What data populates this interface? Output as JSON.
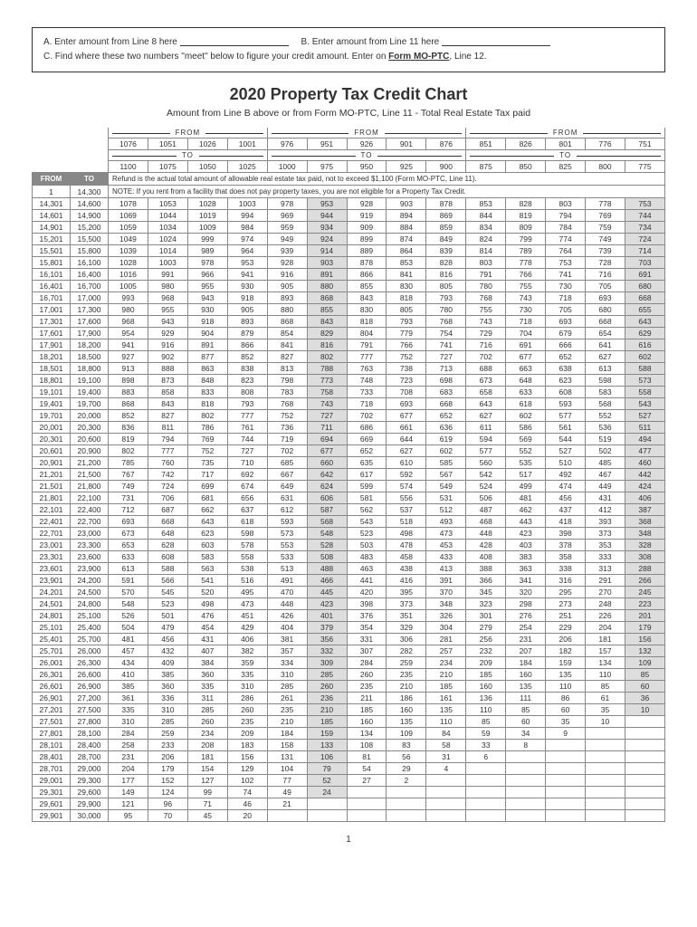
{
  "header": {
    "lineA_part1": "A. Enter amount from Line 8 here",
    "lineA_part2": "B. Enter amount from Line 11 here",
    "lineC_part1": "C. Find where these two numbers \"meet\" below to figure your credit amount. Enter on ",
    "lineC_bold": "Form MO-PTC",
    "lineC_part2": ", Line 12."
  },
  "title": "2020 Property Tax Credit Chart",
  "subtitle": "Amount from Line B above or from Form MO-PTC, Line 11 - Total Real Estate Tax paid",
  "group_label_from": "FROM",
  "group_label_to": "TO",
  "col_from_values": [
    1076,
    1051,
    1026,
    1001,
    976,
    951,
    926,
    901,
    876,
    851,
    826,
    801,
    776,
    751
  ],
  "col_to_values": [
    1100,
    1075,
    1050,
    1025,
    1000,
    975,
    950,
    925,
    900,
    875,
    850,
    825,
    800,
    775
  ],
  "income_header_from": "FROM",
  "income_header_to": "TO",
  "first_row_from": "1",
  "first_row_to": "14,300",
  "note1": "Refund is the actual total amount of allowable real estate tax paid, not to exceed $1,100 (Form MO-PTC, Line 11).",
  "note2": "NOTE: If you rent from a facility that does not pay property taxes, you are not eligible for a Property Tax Credit.",
  "rows": [
    {
      "from": "14,301",
      "to": "14,600",
      "v": [
        1078,
        1053,
        1028,
        1003,
        978,
        953,
        928,
        903,
        878,
        853,
        828,
        803,
        778,
        753
      ]
    },
    {
      "from": "14,601",
      "to": "14,900",
      "v": [
        1069,
        1044,
        1019,
        994,
        969,
        944,
        919,
        894,
        869,
        844,
        819,
        794,
        769,
        744
      ]
    },
    {
      "from": "14,901",
      "to": "15,200",
      "v": [
        1059,
        1034,
        1009,
        984,
        959,
        934,
        909,
        884,
        859,
        834,
        809,
        784,
        759,
        734
      ]
    },
    {
      "from": "15,201",
      "to": "15,500",
      "v": [
        1049,
        1024,
        999,
        974,
        949,
        924,
        899,
        874,
        849,
        824,
        799,
        774,
        749,
        724
      ]
    },
    {
      "from": "15,501",
      "to": "15,800",
      "v": [
        1039,
        1014,
        989,
        964,
        939,
        914,
        889,
        864,
        839,
        814,
        789,
        764,
        739,
        714
      ]
    },
    {
      "from": "15,801",
      "to": "16,100",
      "v": [
        1028,
        1003,
        978,
        953,
        928,
        903,
        878,
        853,
        828,
        803,
        778,
        753,
        728,
        703
      ]
    },
    {
      "from": "16,101",
      "to": "16,400",
      "v": [
        1016,
        991,
        966,
        941,
        916,
        891,
        866,
        841,
        816,
        791,
        766,
        741,
        716,
        691
      ]
    },
    {
      "from": "16,401",
      "to": "16,700",
      "v": [
        1005,
        980,
        955,
        930,
        905,
        880,
        855,
        830,
        805,
        780,
        755,
        730,
        705,
        680
      ]
    },
    {
      "from": "16,701",
      "to": "17,000",
      "v": [
        993,
        968,
        943,
        918,
        893,
        868,
        843,
        818,
        793,
        768,
        743,
        718,
        693,
        668
      ]
    },
    {
      "from": "17,001",
      "to": "17,300",
      "v": [
        980,
        955,
        930,
        905,
        880,
        855,
        830,
        805,
        780,
        755,
        730,
        705,
        680,
        655
      ]
    },
    {
      "from": "17,301",
      "to": "17,600",
      "v": [
        968,
        943,
        918,
        893,
        868,
        843,
        818,
        793,
        768,
        743,
        718,
        693,
        668,
        643
      ]
    },
    {
      "from": "17,601",
      "to": "17,900",
      "v": [
        954,
        929,
        904,
        879,
        854,
        829,
        804,
        779,
        754,
        729,
        704,
        679,
        654,
        629
      ]
    },
    {
      "from": "17,901",
      "to": "18,200",
      "v": [
        941,
        916,
        891,
        866,
        841,
        816,
        791,
        766,
        741,
        716,
        691,
        666,
        641,
        616
      ]
    },
    {
      "from": "18,201",
      "to": "18,500",
      "v": [
        927,
        902,
        877,
        852,
        827,
        802,
        777,
        752,
        727,
        702,
        677,
        652,
        627,
        602
      ]
    },
    {
      "from": "18,501",
      "to": "18,800",
      "v": [
        913,
        888,
        863,
        838,
        813,
        788,
        763,
        738,
        713,
        688,
        663,
        638,
        613,
        588
      ]
    },
    {
      "from": "18,801",
      "to": "19,100",
      "v": [
        898,
        873,
        848,
        823,
        798,
        773,
        748,
        723,
        698,
        673,
        648,
        623,
        598,
        573
      ]
    },
    {
      "from": "19,101",
      "to": "19,400",
      "v": [
        883,
        858,
        833,
        808,
        783,
        758,
        733,
        708,
        683,
        658,
        633,
        608,
        583,
        558
      ]
    },
    {
      "from": "19,401",
      "to": "19,700",
      "v": [
        868,
        843,
        818,
        793,
        768,
        743,
        718,
        693,
        668,
        643,
        618,
        593,
        568,
        543
      ]
    },
    {
      "from": "19,701",
      "to": "20,000",
      "v": [
        852,
        827,
        802,
        777,
        752,
        727,
        702,
        677,
        652,
        627,
        602,
        577,
        552,
        527
      ]
    },
    {
      "from": "20,001",
      "to": "20,300",
      "v": [
        836,
        811,
        786,
        761,
        736,
        711,
        686,
        661,
        636,
        611,
        586,
        561,
        536,
        511
      ]
    },
    {
      "from": "20,301",
      "to": "20,600",
      "v": [
        819,
        794,
        769,
        744,
        719,
        694,
        669,
        644,
        619,
        594,
        569,
        544,
        519,
        494
      ]
    },
    {
      "from": "20,601",
      "to": "20,900",
      "v": [
        802,
        777,
        752,
        727,
        702,
        677,
        652,
        627,
        602,
        577,
        552,
        527,
        502,
        477
      ]
    },
    {
      "from": "20,901",
      "to": "21,200",
      "v": [
        785,
        760,
        735,
        710,
        685,
        660,
        635,
        610,
        585,
        560,
        535,
        510,
        485,
        460
      ]
    },
    {
      "from": "21,201",
      "to": "21,500",
      "v": [
        767,
        742,
        717,
        692,
        667,
        642,
        617,
        592,
        567,
        542,
        517,
        492,
        467,
        442
      ]
    },
    {
      "from": "21,501",
      "to": "21,800",
      "v": [
        749,
        724,
        699,
        674,
        649,
        624,
        599,
        574,
        549,
        524,
        499,
        474,
        449,
        424
      ]
    },
    {
      "from": "21,801",
      "to": "22,100",
      "v": [
        731,
        706,
        681,
        656,
        631,
        606,
        581,
        556,
        531,
        506,
        481,
        456,
        431,
        406
      ]
    },
    {
      "from": "22,101",
      "to": "22,400",
      "v": [
        712,
        687,
        662,
        637,
        612,
        587,
        562,
        537,
        512,
        487,
        462,
        437,
        412,
        387
      ]
    },
    {
      "from": "22,401",
      "to": "22,700",
      "v": [
        693,
        668,
        643,
        618,
        593,
        568,
        543,
        518,
        493,
        468,
        443,
        418,
        393,
        368
      ]
    },
    {
      "from": "22,701",
      "to": "23,000",
      "v": [
        673,
        648,
        623,
        598,
        573,
        548,
        523,
        498,
        473,
        448,
        423,
        398,
        373,
        348
      ]
    },
    {
      "from": "23,001",
      "to": "23,300",
      "v": [
        653,
        628,
        603,
        578,
        553,
        528,
        503,
        478,
        453,
        428,
        403,
        378,
        353,
        328
      ]
    },
    {
      "from": "23,301",
      "to": "23,600",
      "v": [
        633,
        608,
        583,
        558,
        533,
        508,
        483,
        458,
        433,
        408,
        383,
        358,
        333,
        308
      ]
    },
    {
      "from": "23,601",
      "to": "23,900",
      "v": [
        613,
        588,
        563,
        538,
        513,
        488,
        463,
        438,
        413,
        388,
        363,
        338,
        313,
        288
      ]
    },
    {
      "from": "23,901",
      "to": "24,200",
      "v": [
        591,
        566,
        541,
        516,
        491,
        466,
        441,
        416,
        391,
        366,
        341,
        316,
        291,
        266
      ]
    },
    {
      "from": "24,201",
      "to": "24,500",
      "v": [
        570,
        545,
        520,
        495,
        470,
        445,
        420,
        395,
        370,
        345,
        320,
        295,
        270,
        245
      ]
    },
    {
      "from": "24,501",
      "to": "24,800",
      "v": [
        548,
        523,
        498,
        473,
        448,
        423,
        398,
        373,
        348,
        323,
        298,
        273,
        248,
        223
      ]
    },
    {
      "from": "24,801",
      "to": "25,100",
      "v": [
        526,
        501,
        476,
        451,
        426,
        401,
        376,
        351,
        326,
        301,
        276,
        251,
        226,
        201
      ]
    },
    {
      "from": "25,101",
      "to": "25,400",
      "v": [
        504,
        479,
        454,
        429,
        404,
        379,
        354,
        329,
        304,
        279,
        254,
        229,
        204,
        179
      ]
    },
    {
      "from": "25,401",
      "to": "25,700",
      "v": [
        481,
        456,
        431,
        406,
        381,
        356,
        331,
        306,
        281,
        256,
        231,
        206,
        181,
        156
      ]
    },
    {
      "from": "25,701",
      "to": "26,000",
      "v": [
        457,
        432,
        407,
        382,
        357,
        332,
        307,
        282,
        257,
        232,
        207,
        182,
        157,
        132
      ]
    },
    {
      "from": "26,001",
      "to": "26,300",
      "v": [
        434,
        409,
        384,
        359,
        334,
        309,
        284,
        259,
        234,
        209,
        184,
        159,
        134,
        109
      ]
    },
    {
      "from": "26,301",
      "to": "26,600",
      "v": [
        410,
        385,
        360,
        335,
        310,
        285,
        260,
        235,
        210,
        185,
        160,
        135,
        110,
        85
      ]
    },
    {
      "from": "26,601",
      "to": "26,900",
      "v": [
        385,
        360,
        335,
        310,
        285,
        260,
        235,
        210,
        185,
        160,
        135,
        110,
        85,
        60
      ]
    },
    {
      "from": "26,901",
      "to": "27,200",
      "v": [
        361,
        336,
        311,
        286,
        261,
        236,
        211,
        186,
        161,
        136,
        111,
        86,
        61,
        36
      ]
    },
    {
      "from": "27,201",
      "to": "27,500",
      "v": [
        335,
        310,
        285,
        260,
        235,
        210,
        185,
        160,
        135,
        110,
        85,
        60,
        35,
        10
      ]
    },
    {
      "from": "27,501",
      "to": "27,800",
      "v": [
        310,
        285,
        260,
        235,
        210,
        185,
        160,
        135,
        110,
        85,
        60,
        35,
        10,
        null
      ]
    },
    {
      "from": "27,801",
      "to": "28,100",
      "v": [
        284,
        259,
        234,
        209,
        184,
        159,
        134,
        109,
        84,
        59,
        34,
        9,
        null,
        null
      ]
    },
    {
      "from": "28,101",
      "to": "28,400",
      "v": [
        258,
        233,
        208,
        183,
        158,
        133,
        108,
        83,
        58,
        33,
        8,
        null,
        null,
        null
      ]
    },
    {
      "from": "28,401",
      "to": "28,700",
      "v": [
        231,
        206,
        181,
        156,
        131,
        106,
        81,
        56,
        31,
        6,
        null,
        null,
        null,
        null
      ]
    },
    {
      "from": "28,701",
      "to": "29,000",
      "v": [
        204,
        179,
        154,
        129,
        104,
        79,
        54,
        29,
        4,
        null,
        null,
        null,
        null,
        null
      ]
    },
    {
      "from": "29,001",
      "to": "29,300",
      "v": [
        177,
        152,
        127,
        102,
        77,
        52,
        27,
        2,
        null,
        null,
        null,
        null,
        null,
        null
      ]
    },
    {
      "from": "29,301",
      "to": "29,600",
      "v": [
        149,
        124,
        99,
        74,
        49,
        24,
        null,
        null,
        null,
        null,
        null,
        null,
        null,
        null
      ]
    },
    {
      "from": "29,601",
      "to": "29,900",
      "v": [
        121,
        96,
        71,
        46,
        21,
        null,
        null,
        null,
        null,
        null,
        null,
        null,
        null,
        null
      ]
    },
    {
      "from": "29,901",
      "to": "30,000",
      "v": [
        95,
        70,
        45,
        20,
        null,
        null,
        null,
        null,
        null,
        null,
        null,
        null,
        null,
        null
      ]
    }
  ],
  "shaded_cols": [
    5,
    13
  ],
  "page": "1"
}
